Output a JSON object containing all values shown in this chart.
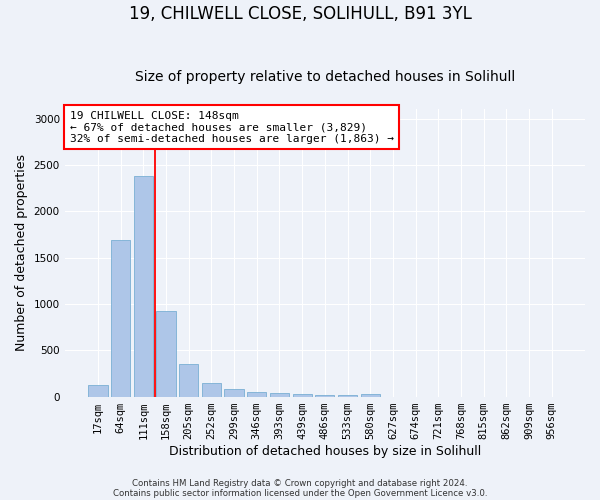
{
  "title1": "19, CHILWELL CLOSE, SOLIHULL, B91 3YL",
  "title2": "Size of property relative to detached houses in Solihull",
  "xlabel": "Distribution of detached houses by size in Solihull",
  "ylabel": "Number of detached properties",
  "footnote1": "Contains HM Land Registry data © Crown copyright and database right 2024.",
  "footnote2": "Contains public sector information licensed under the Open Government Licence v3.0.",
  "bar_labels": [
    "17sqm",
    "64sqm",
    "111sqm",
    "158sqm",
    "205sqm",
    "252sqm",
    "299sqm",
    "346sqm",
    "393sqm",
    "439sqm",
    "486sqm",
    "533sqm",
    "580sqm",
    "627sqm",
    "674sqm",
    "721sqm",
    "768sqm",
    "815sqm",
    "862sqm",
    "909sqm",
    "956sqm"
  ],
  "bar_values": [
    130,
    1690,
    2380,
    920,
    350,
    145,
    80,
    52,
    38,
    28,
    20,
    15,
    28,
    0,
    0,
    0,
    0,
    0,
    0,
    0,
    0
  ],
  "bar_color": "#aec6e8",
  "bar_edge_color": "#7aafd4",
  "vline_color": "red",
  "vline_x_index": 2.5,
  "annotation_text": "19 CHILWELL CLOSE: 148sqm\n← 67% of detached houses are smaller (3,829)\n32% of semi-detached houses are larger (1,863) →",
  "annotation_box_color": "white",
  "annotation_box_edge_color": "red",
  "ylim": [
    0,
    3100
  ],
  "background_color": "#eef2f9",
  "grid_color": "white",
  "title1_fontsize": 12,
  "title2_fontsize": 10,
  "tick_fontsize": 7.5,
  "ylabel_fontsize": 9,
  "xlabel_fontsize": 9,
  "annotation_fontsize": 8
}
